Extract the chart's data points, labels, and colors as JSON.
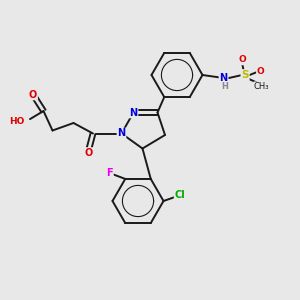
{
  "bg_color": "#e8e8e8",
  "bond_color": "#1a1a1a",
  "atom_colors": {
    "N": "#0000dd",
    "O": "#dd0000",
    "S": "#bbbb00",
    "Cl": "#00aa00",
    "F": "#ee00ee",
    "H": "#888888",
    "C": "#1a1a1a"
  }
}
